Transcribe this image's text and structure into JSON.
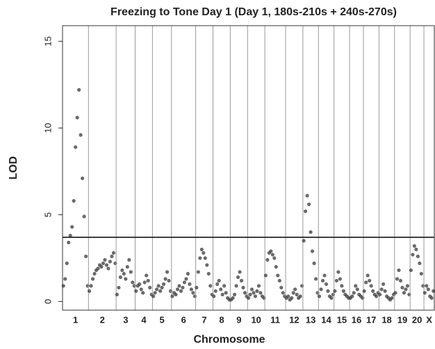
{
  "chart_data": {
    "type": "scatter",
    "title": "Freezing to Tone Day 1 (Day 1, 180s-210s + 240s-270s)",
    "xlabel": "Chromosome",
    "ylabel": "LOD",
    "ylim": [
      -0.5,
      15.9
    ],
    "yticks": [
      0,
      5,
      10,
      15
    ],
    "threshold": 3.7,
    "color": "#3a3a3a",
    "categories": [
      "1",
      "2",
      "3",
      "4",
      "5",
      "6",
      "7",
      "8",
      "9",
      "10",
      "11",
      "12",
      "13",
      "14",
      "15",
      "16",
      "17",
      "18",
      "19",
      "20",
      "X"
    ],
    "values": [
      [
        0.9,
        1.3,
        2.2,
        3.4,
        3.8,
        4.3,
        5.8,
        8.9,
        10.6,
        12.2,
        9.6,
        7.1,
        4.9,
        2.6,
        0.9
      ],
      [
        0.6,
        0.9,
        1.3,
        1.6,
        1.8,
        1.9,
        2.1,
        2.0,
        2.2,
        2.4,
        2.1,
        1.9,
        2.3,
        2.6,
        2.8,
        2.2
      ],
      [
        0.4,
        0.8,
        1.4,
        1.8,
        1.6,
        1.3,
        2.0,
        2.4,
        1.7,
        1.1,
        0.9
      ],
      [
        0.6,
        0.9,
        1.0,
        0.7,
        0.5,
        1.1,
        1.5,
        1.2,
        0.8,
        0.4
      ],
      [
        0.3,
        0.5,
        0.7,
        0.9,
        0.6,
        0.8,
        1.0,
        1.3,
        1.7,
        1.2,
        0.6
      ],
      [
        0.3,
        0.5,
        0.4,
        0.7,
        0.9,
        0.6,
        0.8,
        1.1,
        1.3,
        1.6,
        1.0,
        0.7,
        0.5,
        0.3
      ],
      [
        0.8,
        1.7,
        2.5,
        3.0,
        2.8,
        2.5,
        2.1,
        1.6,
        0.9,
        0.4
      ],
      [
        0.3,
        0.6,
        1.0,
        1.2,
        0.7,
        0.4,
        0.9,
        0.5,
        0.2,
        0.1
      ],
      [
        0.1,
        0.2,
        0.4,
        0.9,
        1.4,
        1.7,
        1.2,
        0.8,
        0.5,
        0.3
      ],
      [
        0.2,
        0.4,
        0.7,
        0.5,
        0.3,
        0.6,
        0.9,
        0.5,
        0.3,
        0.2
      ],
      [
        1.5,
        2.4,
        2.8,
        2.9,
        2.7,
        2.5,
        2.0,
        1.5,
        1.2,
        0.8,
        0.5,
        0.3
      ],
      [
        0.2,
        0.3,
        0.1,
        0.2,
        0.5,
        0.7,
        0.4,
        0.2,
        0.3,
        0.9
      ],
      [
        3.5,
        5.2,
        6.1,
        5.6,
        4.0,
        2.9,
        2.2,
        1.3,
        0.5
      ],
      [
        0.3,
        0.7,
        1.2,
        1.5,
        1.0,
        0.6,
        0.3,
        0.2,
        0.4
      ],
      [
        0.6,
        1.2,
        1.7,
        1.3,
        0.9,
        0.6,
        0.4,
        0.3,
        0.2
      ],
      [
        0.2,
        0.3,
        0.5,
        0.9,
        0.7,
        0.4,
        0.3,
        0.2
      ],
      [
        0.6,
        1.1,
        1.5,
        1.2,
        0.9,
        0.6,
        0.4,
        0.3,
        0.5
      ],
      [
        0.4,
        0.7,
        1.0,
        0.6,
        0.3,
        0.2,
        0.1,
        0.2,
        0.4
      ],
      [
        0.5,
        1.3,
        1.8,
        1.2,
        0.8,
        0.5,
        0.7,
        0.9,
        0.4
      ],
      [
        1.8,
        2.7,
        3.2,
        3.0,
        2.6,
        2.2,
        1.6,
        0.9
      ],
      [
        0.5,
        0.9,
        0.7,
        0.3,
        0.2,
        0.6
      ]
    ]
  }
}
